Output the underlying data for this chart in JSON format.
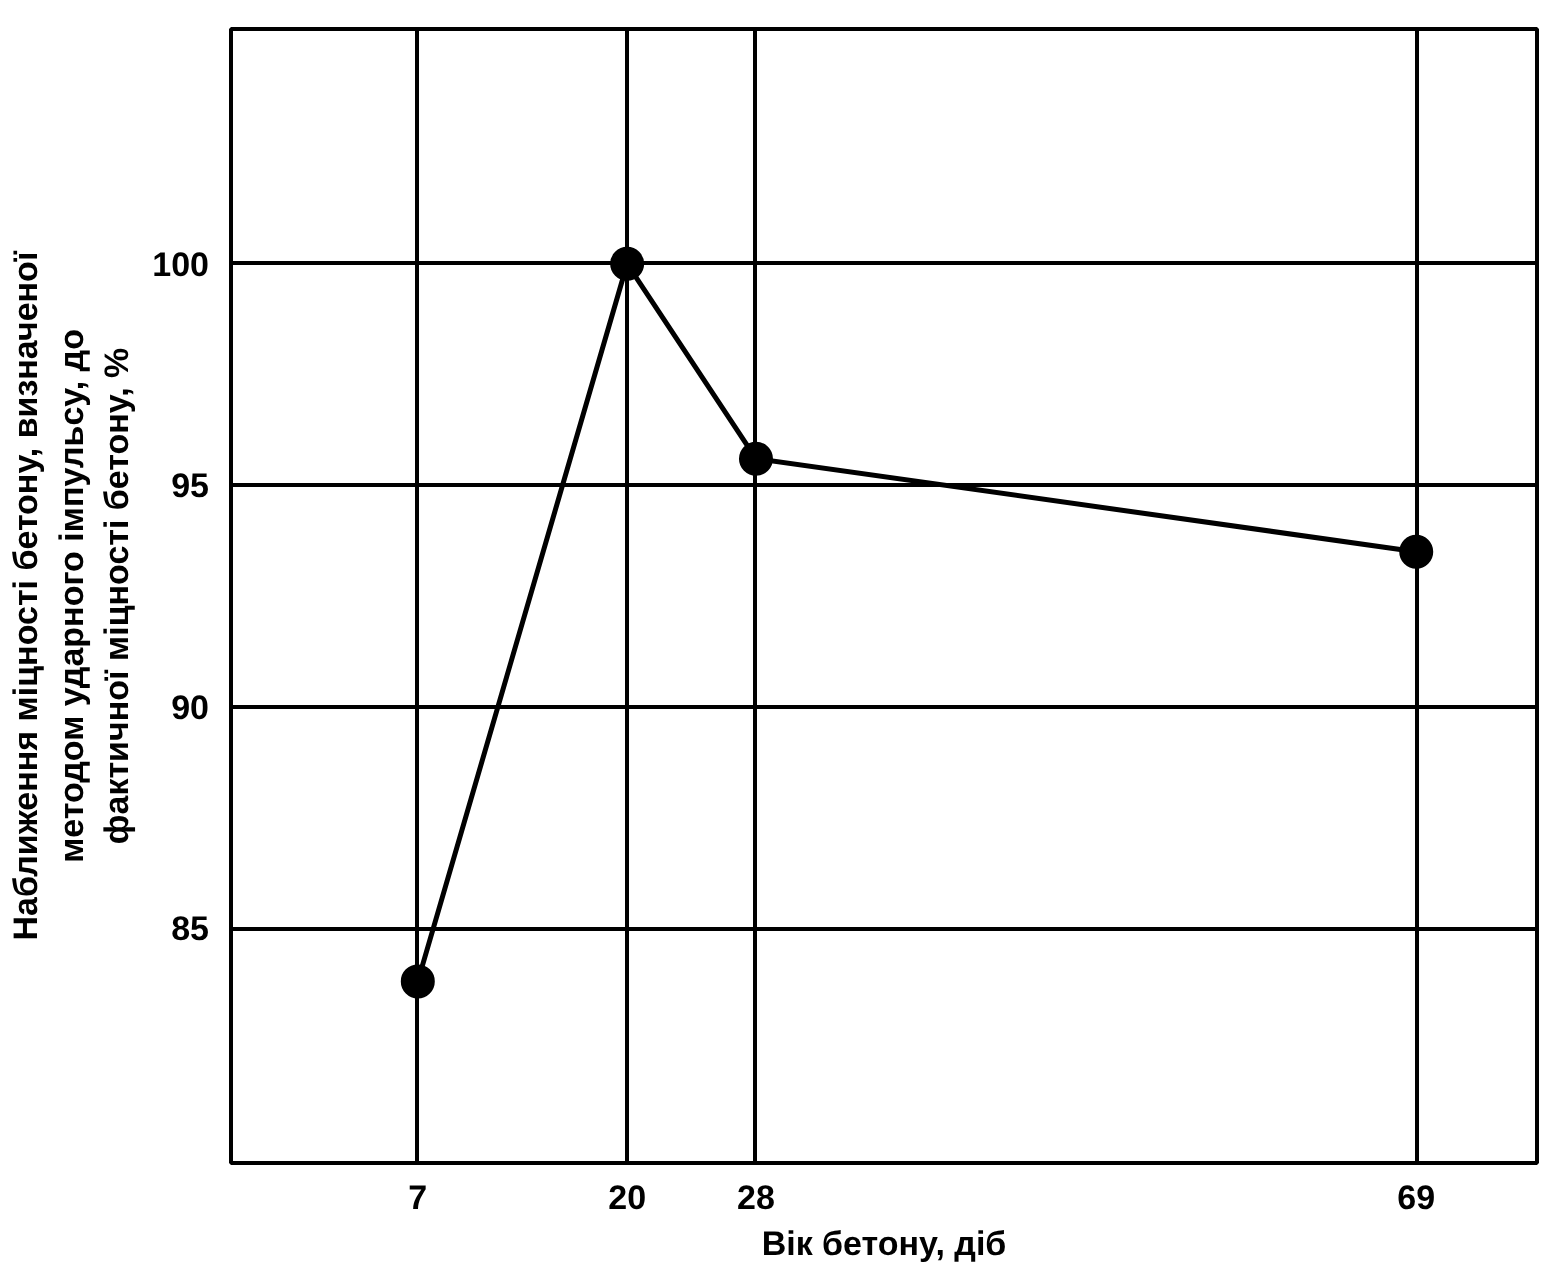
{
  "chart_data": {
    "type": "line",
    "xlabel": "Вік бетону, діб",
    "ylabel": "Наближення міцності бетону, визначеної методом ударного імпульсу, до фактичної міцності бетону, %",
    "x": [
      7,
      20,
      28,
      69
    ],
    "series": [
      {
        "color": "#000000",
        "values": [
          83.8,
          100,
          95.6,
          93.5
        ]
      }
    ],
    "xlim": [
      -4.6,
      76.5
    ],
    "ylim": [
      79.7,
      105.3
    ],
    "xticks": [
      7,
      20,
      28,
      69
    ],
    "yticks": [
      85,
      90,
      95,
      100
    ],
    "grid": true,
    "marker": "circle",
    "line_style": "solid"
  }
}
